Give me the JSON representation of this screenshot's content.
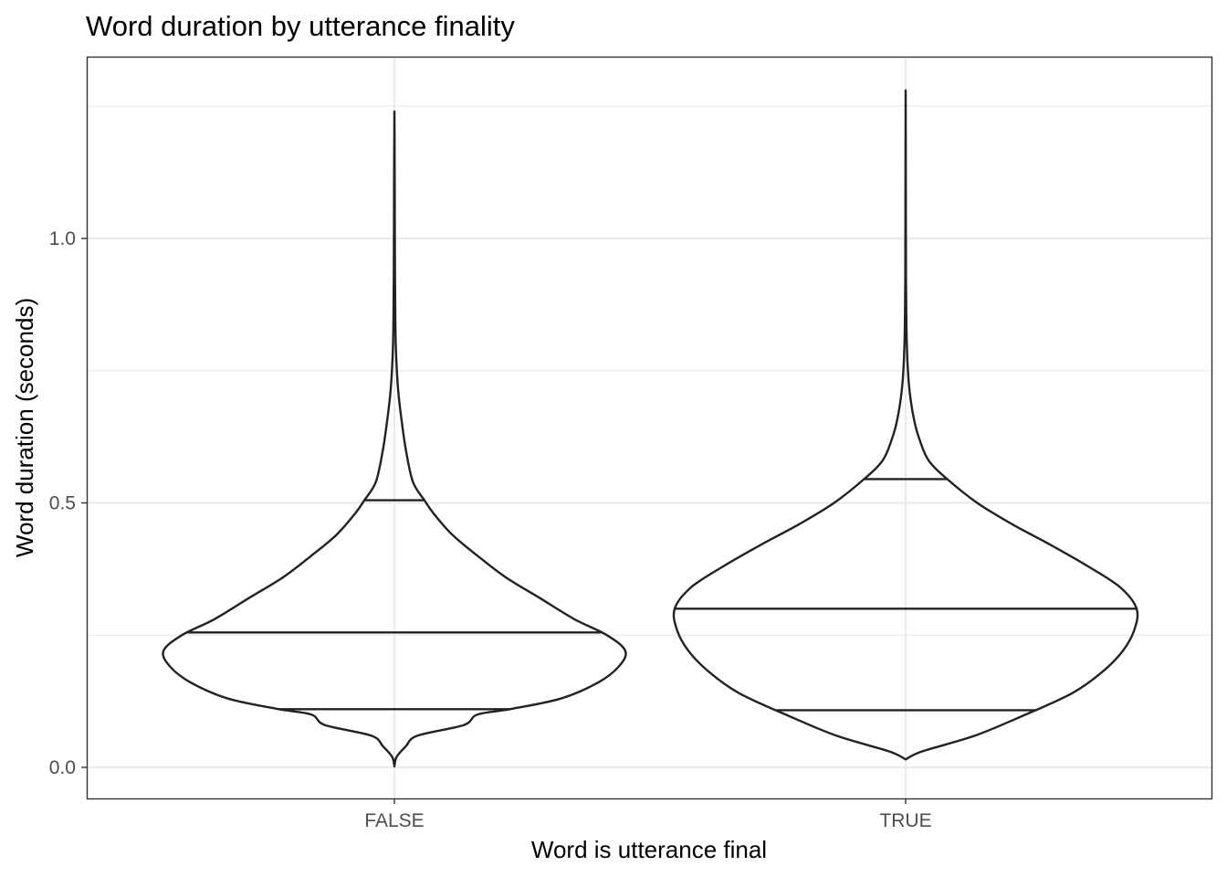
{
  "chart_data": {
    "type": "violin",
    "title": "Word duration by utterance finality",
    "xlabel": "Word is utterance final",
    "ylabel": "Word duration (seconds)",
    "categories": [
      "FALSE",
      "TRUE"
    ],
    "ylim": [
      -0.06,
      1.34
    ],
    "y_ticks": [
      0.0,
      0.5,
      1.0
    ],
    "y_tick_labels": [
      "0.0",
      "0.5",
      "1.0"
    ],
    "grid": true,
    "quantiles": [
      0.25,
      0.5,
      0.75
    ],
    "series": [
      {
        "category": "FALSE",
        "min": 0.002,
        "max": 1.24,
        "q25": 0.11,
        "median": 0.255,
        "q75": 0.505,
        "density": [
          [
            0.002,
            0.0
          ],
          [
            0.02,
            0.01
          ],
          [
            0.04,
            0.05
          ],
          [
            0.06,
            0.1
          ],
          [
            0.08,
            0.3
          ],
          [
            0.1,
            0.36
          ],
          [
            0.11,
            0.5
          ],
          [
            0.13,
            0.72
          ],
          [
            0.16,
            0.88
          ],
          [
            0.19,
            0.97
          ],
          [
            0.22,
            1.0
          ],
          [
            0.25,
            0.92
          ],
          [
            0.28,
            0.78
          ],
          [
            0.32,
            0.63
          ],
          [
            0.36,
            0.48
          ],
          [
            0.4,
            0.36
          ],
          [
            0.44,
            0.25
          ],
          [
            0.48,
            0.17
          ],
          [
            0.505,
            0.13
          ],
          [
            0.54,
            0.08
          ],
          [
            0.6,
            0.05
          ],
          [
            0.66,
            0.03
          ],
          [
            0.72,
            0.015
          ],
          [
            0.8,
            0.006
          ],
          [
            0.9,
            0.003
          ],
          [
            1.0,
            0.002
          ],
          [
            1.24,
            0.0
          ]
        ]
      },
      {
        "category": "TRUE",
        "min": 0.015,
        "max": 1.28,
        "q25": 0.108,
        "median": 0.3,
        "q75": 0.545,
        "density": [
          [
            0.015,
            0.0
          ],
          [
            0.03,
            0.07
          ],
          [
            0.06,
            0.3
          ],
          [
            0.1,
            0.52
          ],
          [
            0.14,
            0.72
          ],
          [
            0.18,
            0.85
          ],
          [
            0.22,
            0.94
          ],
          [
            0.26,
            0.99
          ],
          [
            0.3,
            1.0
          ],
          [
            0.34,
            0.93
          ],
          [
            0.38,
            0.79
          ],
          [
            0.42,
            0.63
          ],
          [
            0.46,
            0.46
          ],
          [
            0.5,
            0.31
          ],
          [
            0.545,
            0.18
          ],
          [
            0.58,
            0.1
          ],
          [
            0.62,
            0.06
          ],
          [
            0.66,
            0.035
          ],
          [
            0.72,
            0.015
          ],
          [
            0.8,
            0.005
          ],
          [
            0.9,
            0.002
          ],
          [
            1.0,
            0.001
          ],
          [
            1.28,
            0.0
          ]
        ]
      }
    ]
  }
}
